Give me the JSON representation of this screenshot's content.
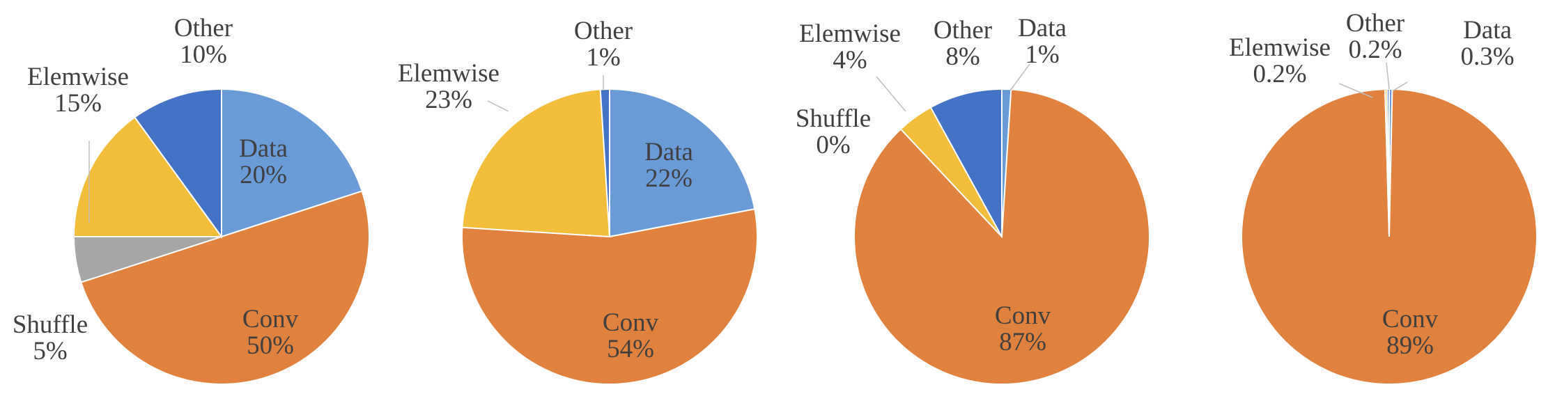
{
  "colors": {
    "Data": "#6a9bd6",
    "Conv": "#e0823e",
    "Shuffle": "#a6a6a6",
    "Elemwise": "#f3bd3c",
    "Other": "#4472c4",
    "text": "#404040",
    "inner_text": "#404040"
  },
  "chart_data": [
    {
      "type": "pie",
      "slices": [
        {
          "name": "Data",
          "value": 20,
          "label": "20%"
        },
        {
          "name": "Conv",
          "value": 50,
          "label": "50%"
        },
        {
          "name": "Shuffle",
          "value": 5,
          "label": "5%"
        },
        {
          "name": "Elemwise",
          "value": 15,
          "label": "15%"
        },
        {
          "name": "Other",
          "value": 10,
          "label": "10%"
        }
      ]
    },
    {
      "type": "pie",
      "slices": [
        {
          "name": "Data",
          "value": 22,
          "label": "22%"
        },
        {
          "name": "Conv",
          "value": 54,
          "label": "54%"
        },
        {
          "name": "Elemwise",
          "value": 23,
          "label": "23%"
        },
        {
          "name": "Other",
          "value": 1,
          "label": "1%"
        }
      ]
    },
    {
      "type": "pie",
      "slices": [
        {
          "name": "Data",
          "value": 1,
          "label": "1%"
        },
        {
          "name": "Conv",
          "value": 87,
          "label": "87%"
        },
        {
          "name": "Shuffle",
          "value": 0,
          "label": "0%"
        },
        {
          "name": "Elemwise",
          "value": 4,
          "label": "4%"
        },
        {
          "name": "Other",
          "value": 8,
          "label": "8%"
        }
      ]
    },
    {
      "type": "pie",
      "slices": [
        {
          "name": "Data",
          "value": 0.3,
          "label": "0.3%"
        },
        {
          "name": "Conv",
          "value": 89,
          "label": "89%"
        },
        {
          "name": "Elemwise",
          "value": 0.2,
          "label": "0.2%"
        },
        {
          "name": "Other",
          "value": 0.2,
          "label": "0.2%"
        }
      ]
    }
  ]
}
